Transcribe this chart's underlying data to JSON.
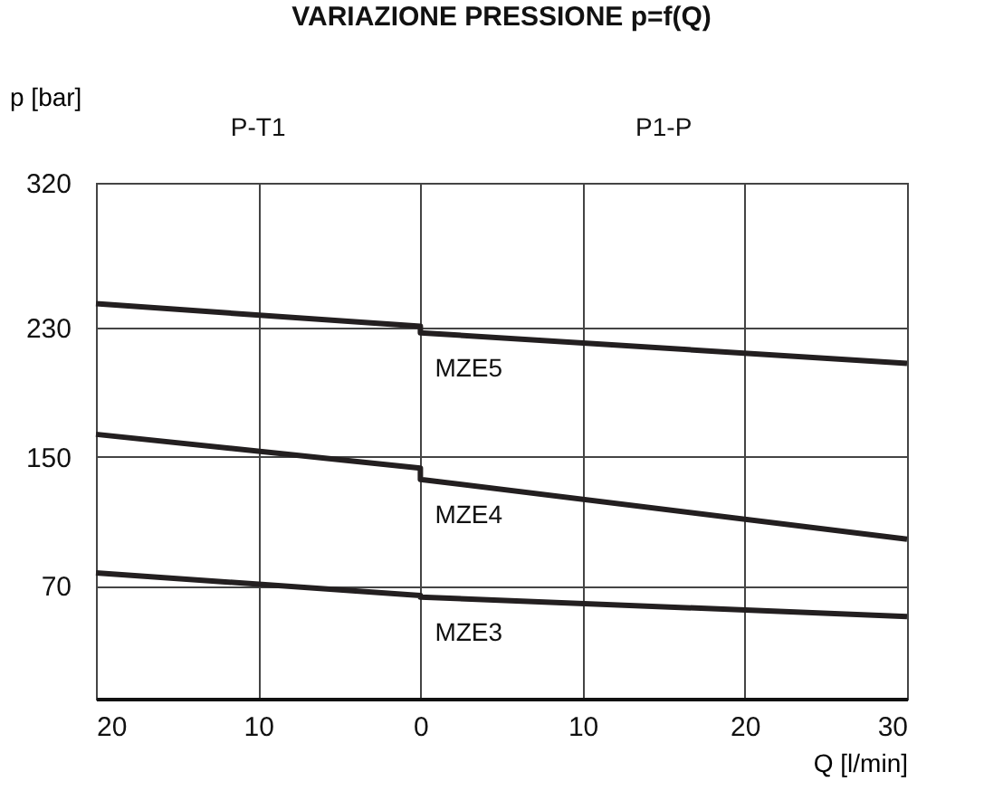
{
  "chart_data": {
    "type": "line",
    "title": "VARIAZIONE PRESSIONE p=f(Q)",
    "xlabel": "Q [l/min]",
    "ylabel": "p [bar]",
    "x": [
      -20,
      0,
      0,
      30
    ],
    "series": [
      {
        "name": "MZE5",
        "color": "#231f20",
        "values": [
          245,
          231,
          227,
          208
        ]
      },
      {
        "name": "MZE4",
        "color": "#231f20",
        "values": [
          164,
          143,
          136,
          99
        ]
      },
      {
        "name": "MZE3",
        "color": "#231f20",
        "values": [
          78,
          64,
          63,
          51
        ]
      }
    ],
    "xlim": [
      -20,
      30
    ],
    "xticks": [
      {
        "value": -20,
        "label": "20"
      },
      {
        "value": -10,
        "label": "10"
      },
      0,
      10,
      20,
      30
    ],
    "ylim": [
      0,
      320
    ],
    "yticks": [
      70,
      150,
      230,
      320
    ],
    "annotations": [
      "P-T1",
      "P1-P"
    ],
    "grid": true,
    "legend": false,
    "marker": "none",
    "line_style": "solid"
  }
}
